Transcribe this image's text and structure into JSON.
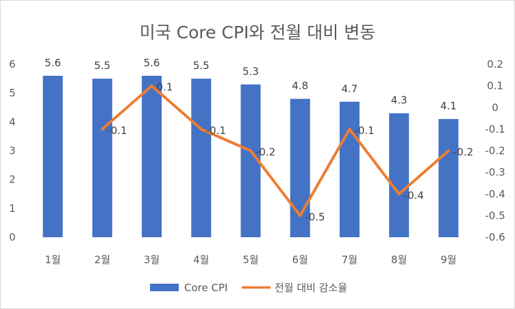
{
  "chart_data": {
    "type": "bar+line",
    "title": "미국 Core CPI와 전월 대비 변동",
    "categories": [
      "1월",
      "2월",
      "3월",
      "4월",
      "5월",
      "6월",
      "7월",
      "8월",
      "9월"
    ],
    "series": [
      {
        "name": "Core CPI",
        "type": "bar",
        "axis": "left",
        "color": "#4472C4",
        "values": [
          5.6,
          5.5,
          5.6,
          5.5,
          5.3,
          4.8,
          4.7,
          4.3,
          4.1
        ],
        "labels": [
          "5.6",
          "5.5",
          "5.6",
          "5.5",
          "5.3",
          "4.8",
          "4.7",
          "4.3",
          "4.1"
        ]
      },
      {
        "name": "전월 대비 감소율",
        "type": "line",
        "axis": "right",
        "color": "#ED7D31",
        "values": [
          null,
          -0.1,
          0.1,
          -0.1,
          -0.2,
          -0.5,
          -0.1,
          -0.4,
          -0.2
        ],
        "labels": [
          "",
          "-0.1",
          "0.1",
          "-0.1",
          "-0.2",
          "-0.5",
          "-0.1",
          "-0.4",
          "-0.2"
        ]
      }
    ],
    "y_left": {
      "range": [
        0,
        6
      ],
      "ticks": [
        0,
        1,
        2,
        3,
        4,
        5,
        6
      ],
      "tick_labels": [
        "0",
        "1",
        "2",
        "3",
        "4",
        "5",
        "6"
      ]
    },
    "y_right": {
      "range": [
        -0.6,
        0.2
      ],
      "ticks": [
        0.2,
        0.1,
        0,
        -0.1,
        -0.2,
        -0.3,
        -0.4,
        -0.5,
        -0.6
      ],
      "tick_labels": [
        "0.2",
        "0.1",
        "0",
        "-0.1",
        "-0.2",
        "-0.3",
        "-0.4",
        "-0.5",
        "-0.6"
      ]
    },
    "grid": false,
    "legend": "bottom"
  }
}
